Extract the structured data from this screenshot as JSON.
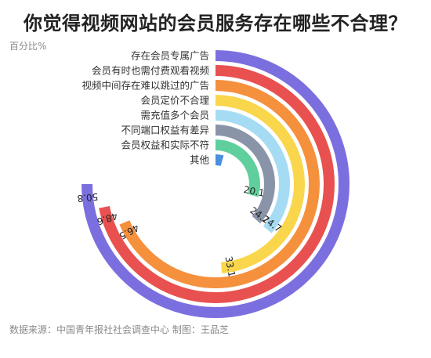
{
  "title": "你觉得视频网站的会员服务存在哪些不合理？",
  "unit_label": "百分比%",
  "source": "数据来源：中国青年报社社会调查中心 制图：王品芝",
  "chart_data": {
    "type": "radial-bar",
    "title": "你觉得视频网站的会员服务存在哪些不合理？",
    "unit": "百分比%",
    "max_value": 50.8,
    "categories": [
      "存在会员专属广告",
      "会员有时也需付费观看视频",
      "视频中间存在难以跳过的广告",
      "会员定价不合理",
      "需充值多个会员",
      "不同端口权益有差异",
      "会员权益和实际不符",
      "其他"
    ],
    "values": [
      50.8,
      48.6,
      46.5,
      33.1,
      24.7,
      24.7,
      20.1,
      3.0
    ],
    "value_labels": [
      "50.8",
      "48.6",
      "46.5",
      "33.1",
      "24.7",
      "24.7",
      "20.1",
      ""
    ],
    "colors": [
      "#7b6fe0",
      "#e8514f",
      "#f5903d",
      "#f9d64b",
      "#a6dcf3",
      "#8a94a8",
      "#5fcf9d",
      "#4a8fe0"
    ]
  }
}
